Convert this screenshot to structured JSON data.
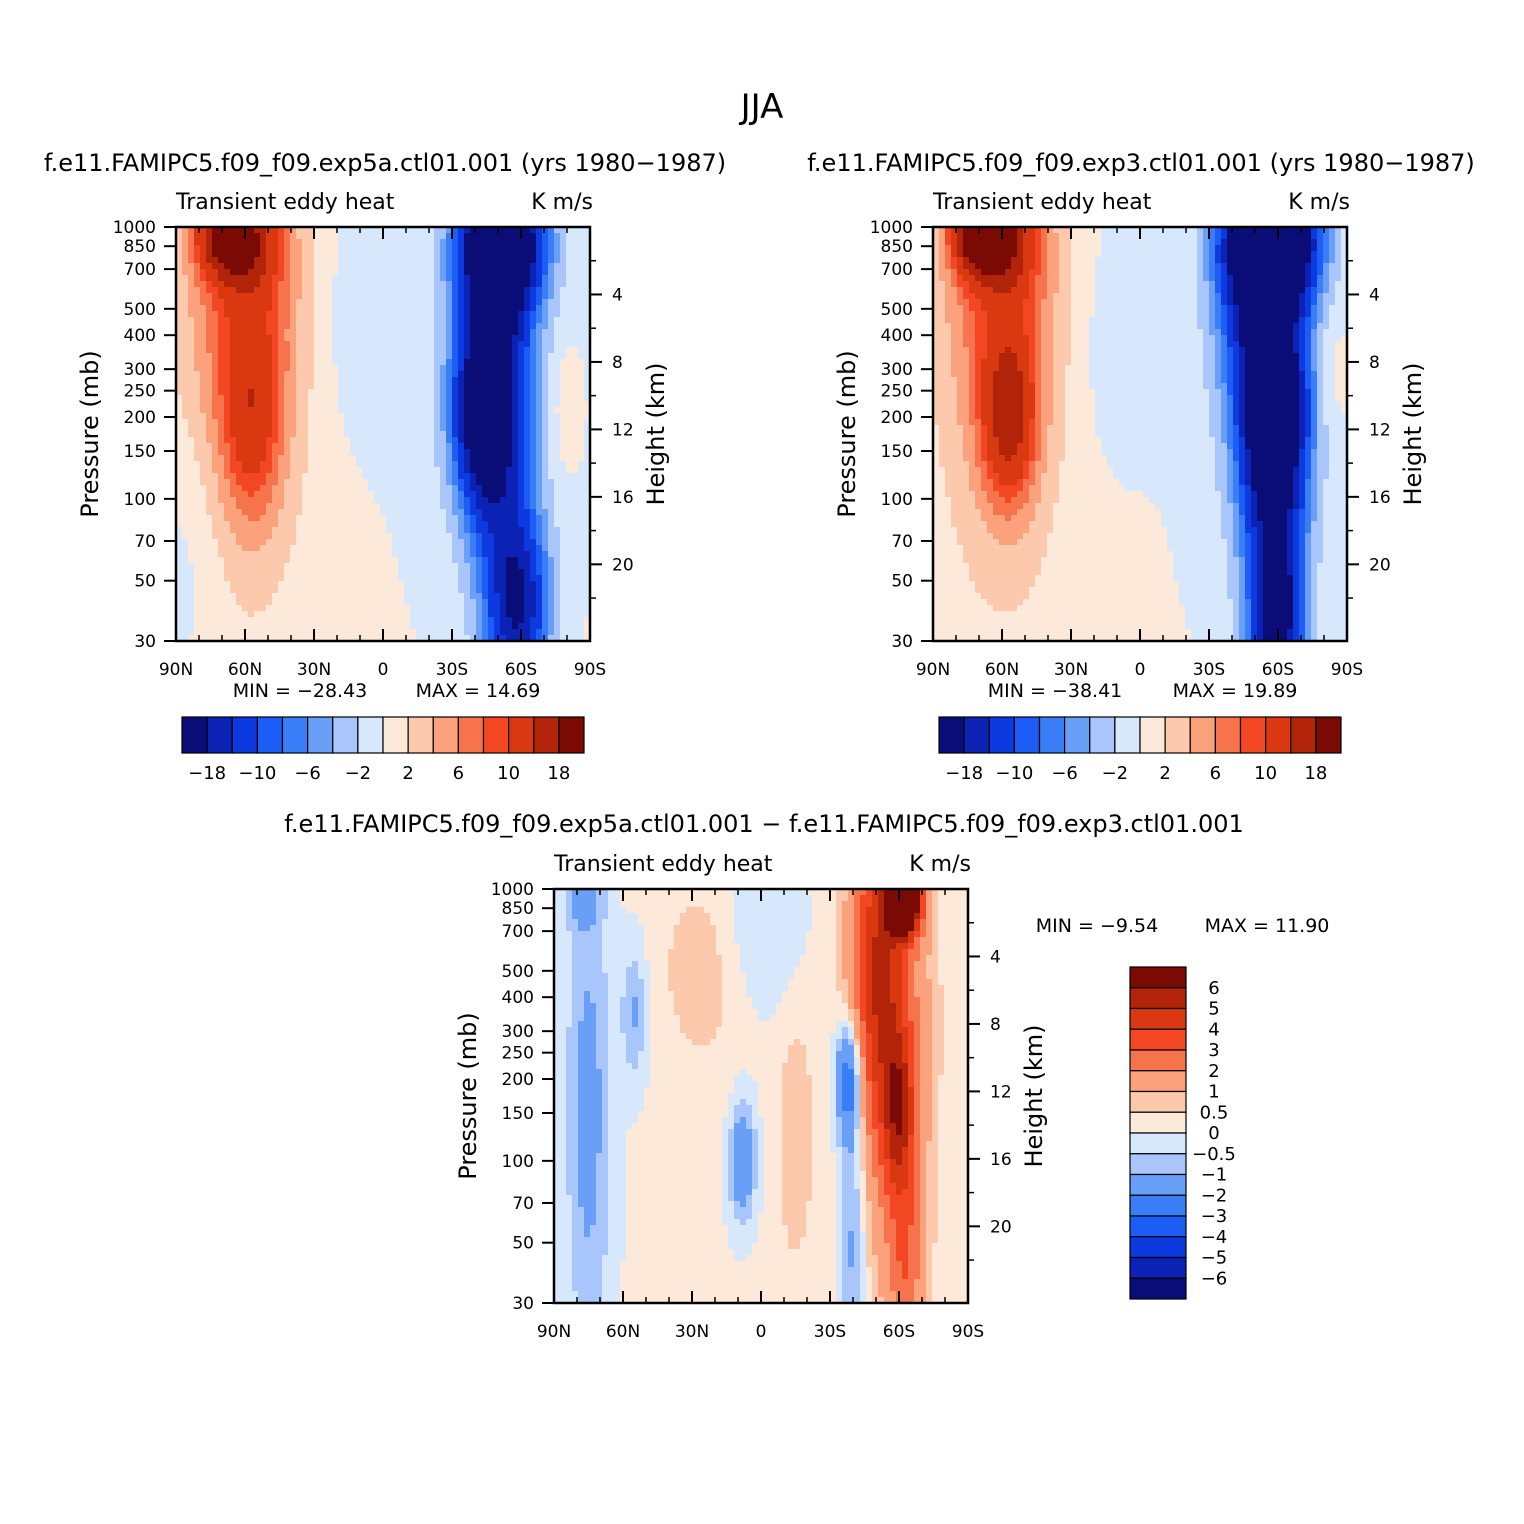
{
  "figure": {
    "title": "JJA"
  },
  "colors": {
    "frame": "#000000",
    "diverging_18": [
      "#0a0d78",
      "#0b22b5",
      "#0d3ae0",
      "#1c5ef5",
      "#3a7ef7",
      "#6a9ff8",
      "#a8c6fb",
      "#d8e8fc",
      "#fde9da",
      "#fcc9ac",
      "#fba27c",
      "#f7734c",
      "#f24722",
      "#d93810",
      "#b22409",
      "#7b0a05"
    ]
  },
  "chart_data": [
    {
      "id": "panel-exp5a",
      "type": "heatmap",
      "title": "f.e11.FAMIPC5.f09_f09.exp5a.ctl01.001 (yrs 1980-1987)",
      "subtitle_left": "Transient eddy heat",
      "subtitle_right": "K m/s",
      "ylabel": "Pressure (mb)",
      "ylabel_right": "Height (km)",
      "x_ticks": [
        "90N",
        "60N",
        "30N",
        "0",
        "30S",
        "60S",
        "90S"
      ],
      "x_values": [
        90,
        60,
        30,
        0,
        -30,
        -60,
        -90
      ],
      "y_ticks": [
        30,
        50,
        70,
        100,
        150,
        200,
        250,
        300,
        400,
        500,
        700,
        850,
        1000
      ],
      "y_ticks_right": [
        20,
        16,
        12,
        8,
        4
      ],
      "ylim": [
        1000,
        30
      ],
      "min_label": "MIN = -28.43",
      "max_label": "MAX = 14.69",
      "min": -28.43,
      "max": 14.69,
      "colorbar_labels": [
        "-18",
        "-10",
        "-6",
        "-2",
        "2",
        "6",
        "10",
        "18"
      ],
      "features": [
        {
          "lat": 70,
          "pres": 950,
          "value": 14
        },
        {
          "lat": 58,
          "pres": 880,
          "value": 9
        },
        {
          "lat": 57,
          "pres": 200,
          "value": 8
        },
        {
          "lat": -52,
          "pres": 880,
          "value": -28
        },
        {
          "lat": -43,
          "pres": 200,
          "value": -22
        },
        {
          "lat": -60,
          "pres": 40,
          "value": -14
        }
      ]
    },
    {
      "id": "panel-exp3",
      "type": "heatmap",
      "title": "f.e11.FAMIPC5.f09_f09.exp3.ctl01.001 (yrs 1980-1987)",
      "subtitle_left": "Transient eddy heat",
      "subtitle_right": "K m/s",
      "ylabel": "Pressure (mb)",
      "ylabel_right": "Height (km)",
      "x_ticks": [
        "90N",
        "60N",
        "30N",
        "0",
        "30S",
        "60S",
        "90S"
      ],
      "x_values": [
        90,
        60,
        30,
        0,
        -30,
        -60,
        -90
      ],
      "y_ticks": [
        30,
        50,
        70,
        100,
        150,
        200,
        250,
        300,
        400,
        500,
        700,
        850,
        1000
      ],
      "y_ticks_right": [
        20,
        16,
        12,
        8,
        4
      ],
      "ylim": [
        1000,
        30
      ],
      "min_label": "MIN = -38.41",
      "max_label": "MAX = 19.89",
      "min": -38.41,
      "max": 19.89,
      "colorbar_labels": [
        "-18",
        "-10",
        "-6",
        "-2",
        "2",
        "6",
        "10",
        "18"
      ],
      "features": [
        {
          "lat": 70,
          "pres": 950,
          "value": 18
        },
        {
          "lat": 57,
          "pres": 200,
          "value": 12
        },
        {
          "lat": -57,
          "pres": 880,
          "value": -38
        },
        {
          "lat": -58,
          "pres": 200,
          "value": -22
        },
        {
          "lat": -60,
          "pres": 35,
          "value": -16
        }
      ]
    },
    {
      "id": "panel-diff",
      "type": "heatmap",
      "title": "f.e11.FAMIPC5.f09_f09.exp5a.ctl01.001 - f.e11.FAMIPC5.f09_f09.exp3.ctl01.001",
      "subtitle_left": "Transient eddy heat",
      "subtitle_right": "K m/s",
      "ylabel": "Pressure (mb)",
      "ylabel_right": "Height (km)",
      "x_ticks": [
        "90N",
        "60N",
        "30N",
        "0",
        "30S",
        "60S",
        "90S"
      ],
      "x_values": [
        90,
        60,
        30,
        0,
        -30,
        -60,
        -90
      ],
      "y_ticks": [
        30,
        50,
        70,
        100,
        150,
        200,
        250,
        300,
        400,
        500,
        700,
        850,
        1000
      ],
      "y_ticks_right": [
        20,
        16,
        12,
        8,
        4
      ],
      "ylim": [
        1000,
        30
      ],
      "min_label": "MIN = -9.54",
      "max_label": "MAX = 11.90",
      "min": -9.54,
      "max": 11.9,
      "colorbar_labels": [
        "6",
        "5",
        "4",
        "3",
        "2",
        "1",
        "0.5",
        "0",
        "-0.5",
        "-1",
        "-2",
        "-3",
        "-4",
        "-5",
        "-6"
      ],
      "features": [
        {
          "lat": -62,
          "pres": 930,
          "value": 11
        },
        {
          "lat": -50,
          "pres": 400,
          "value": 4
        },
        {
          "lat": -60,
          "pres": 150,
          "value": 3.5
        },
        {
          "lat": -38,
          "pres": 200,
          "value": -3
        },
        {
          "lat": -40,
          "pres": 60,
          "value": -1.5
        },
        {
          "lat": 75,
          "pres": 150,
          "value": -1.5
        },
        {
          "lat": 8,
          "pres": 100,
          "value": -2
        }
      ]
    }
  ]
}
